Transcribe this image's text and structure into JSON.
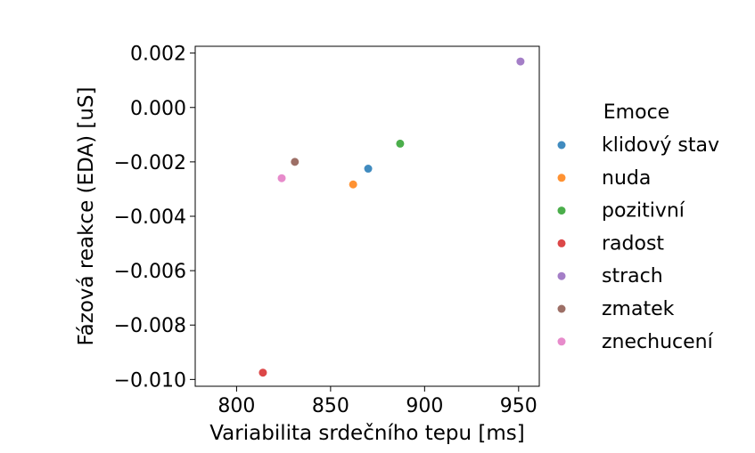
{
  "chart_data": {
    "type": "scatter",
    "xlabel": "Variabilita srdečního tepu [ms]",
    "ylabel": "Fázová reakce (EDA) [uS]",
    "xlim": [
      778,
      961
    ],
    "ylim": [
      -0.01025,
      0.00225
    ],
    "xticks": [
      800,
      850,
      900,
      950
    ],
    "xtick_labels": [
      "800",
      "850",
      "900",
      "950"
    ],
    "yticks": [
      0.002,
      0.0,
      -0.002,
      -0.004,
      -0.006,
      -0.008,
      -0.01
    ],
    "ytick_labels": [
      "0.002",
      "0.000",
      "−0.002",
      "−0.004",
      "−0.006",
      "−0.008",
      "−0.010"
    ],
    "grid": false,
    "legend": {
      "title": "Emoce",
      "placement": "right-outside"
    },
    "series": [
      {
        "name": "klidový stav",
        "color": "#1f77b4",
        "points": [
          {
            "x": 870,
            "y": -0.00225
          }
        ]
      },
      {
        "name": "nuda",
        "color": "#ff7f0e",
        "points": [
          {
            "x": 862,
            "y": -0.00283
          }
        ]
      },
      {
        "name": "pozitivní",
        "color": "#2ca02c",
        "points": [
          {
            "x": 887,
            "y": -0.00133
          }
        ]
      },
      {
        "name": "radost",
        "color": "#d62728",
        "points": [
          {
            "x": 814,
            "y": -0.00975
          }
        ]
      },
      {
        "name": "strach",
        "color": "#9467bd",
        "points": [
          {
            "x": 951,
            "y": 0.00169
          }
        ]
      },
      {
        "name": "zmatek",
        "color": "#8c564b",
        "points": [
          {
            "x": 831,
            "y": -0.002
          }
        ]
      },
      {
        "name": "znechucení",
        "color": "#e377c2",
        "points": [
          {
            "x": 824,
            "y": -0.0026
          }
        ]
      }
    ]
  }
}
